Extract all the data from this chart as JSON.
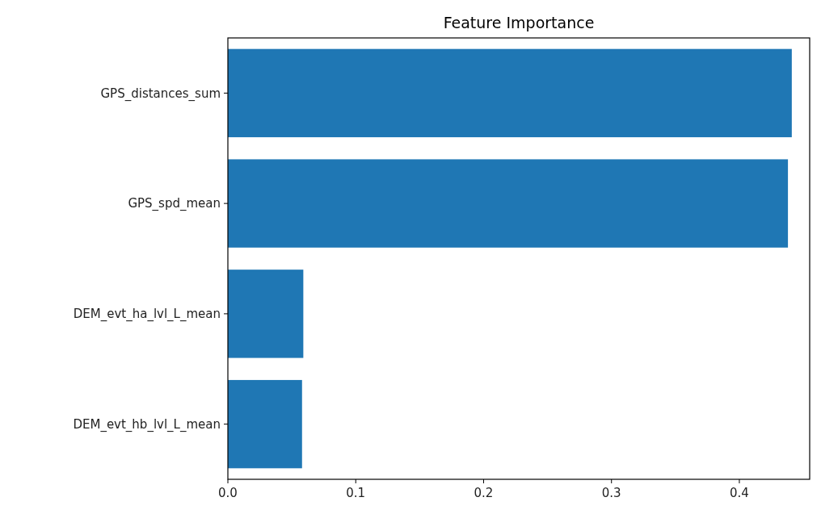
{
  "chart_data": {
    "type": "bar",
    "orientation": "horizontal",
    "title": "Feature Importance",
    "categories": [
      "GPS_distances_sum",
      "GPS_spd_mean",
      "DEM_evt_ha_lvl_L_mean",
      "DEM_evt_hb_lvl_L_mean"
    ],
    "values": [
      0.441,
      0.438,
      0.059,
      0.058
    ],
    "color": "#1f77b4",
    "xlim": [
      0,
      0.455
    ],
    "xticks": [
      {
        "value": 0,
        "label": "0.0"
      },
      0.1,
      0.2,
      0.3,
      0.4
    ],
    "grid": false
  }
}
